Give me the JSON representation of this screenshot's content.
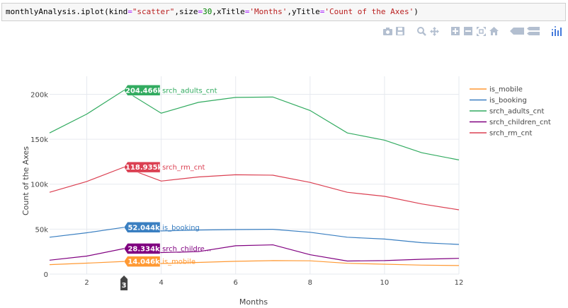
{
  "code": {
    "call": "monthlyAnalysis.iplot(kind=\"scatter\",size=30,xTitle='Months',yTitle='Count of the Axes')",
    "parts": {
      "p1": "monthlyAnalysis.iplot(kind",
      "p2": "=",
      "p3": "\"scatter\"",
      "p4": ",size",
      "p5": "=",
      "p6": "30",
      "p7": ",xTitle",
      "p8": "=",
      "p9": "'Months'",
      "p10": ",yTitle",
      "p11": "=",
      "p12": "'Count of the Axes'",
      "p13": ")"
    }
  },
  "modebar": {
    "icons": [
      "camera-icon",
      "save-icon",
      "zoom-icon",
      "pan-icon",
      "zoom-in-icon",
      "zoom-out-icon",
      "autoscale-icon",
      "reset-axes-icon",
      "spike-lines-icon",
      "compare-hover-icon",
      "plotly-logo-icon"
    ],
    "color": "#b3bfd0",
    "logo_color": "#447adb"
  },
  "chart_data": {
    "type": "line",
    "xlabel": "Months",
    "ylabel": "Count of the Axes",
    "xlim": [
      1,
      12
    ],
    "ylim": [
      0,
      220000
    ],
    "x_ticks": [
      2,
      4,
      6,
      8,
      10,
      12
    ],
    "x_tick_labels": [
      "2",
      "4",
      "6",
      "8",
      "10",
      "12"
    ],
    "y_ticks": [
      0,
      50000,
      100000,
      150000,
      200000
    ],
    "y_tick_labels": [
      "0",
      "50k",
      "100k",
      "150k",
      "200k"
    ],
    "grid": true,
    "legend_position": "right",
    "x": [
      1,
      2,
      3,
      4,
      5,
      6,
      7,
      8,
      9,
      10,
      11,
      12
    ],
    "series": [
      {
        "name": "is_mobile",
        "color": "#ff9933",
        "values": [
          10500,
          12200,
          14046,
          11800,
          13000,
          14200,
          15000,
          14800,
          12000,
          11000,
          10000,
          9500
        ]
      },
      {
        "name": "is_booking",
        "color": "#3a7fc1",
        "values": [
          41000,
          46000,
          52044,
          48000,
          49000,
          49500,
          49800,
          46500,
          41000,
          39000,
          35000,
          33000
        ]
      },
      {
        "name": "srch_adults_cnt",
        "color": "#32ab60",
        "values": [
          157000,
          178000,
          204466,
          179000,
          191000,
          196500,
          197000,
          182000,
          157000,
          149000,
          135000,
          127000
        ]
      },
      {
        "name": "srch_children_cnt",
        "color": "#800080",
        "values": [
          15500,
          20000,
          28334,
          24000,
          25000,
          31500,
          32500,
          21500,
          14500,
          15000,
          16500,
          17500
        ]
      },
      {
        "name": "srch_rm_cnt",
        "color": "#db4052",
        "values": [
          91000,
          103000,
          118935,
          103500,
          108000,
          110500,
          110000,
          102000,
          91000,
          86500,
          78000,
          71500
        ]
      }
    ],
    "hover": {
      "x_label": "3",
      "labels": [
        {
          "series": "srch_adults_cnt",
          "value_text": "204.466k",
          "name_text": "srch_adults_cnt"
        },
        {
          "series": "srch_rm_cnt",
          "value_text": "118.935k",
          "name_text": "srch_rm_cnt"
        },
        {
          "series": "is_booking",
          "value_text": "52.044k",
          "name_text": "is_booking"
        },
        {
          "series": "srch_children_cnt",
          "value_text": "28.334k",
          "name_text": "srch_childre..."
        },
        {
          "series": "is_mobile",
          "value_text": "14.046k",
          "name_text": "is_mobile"
        }
      ]
    }
  }
}
